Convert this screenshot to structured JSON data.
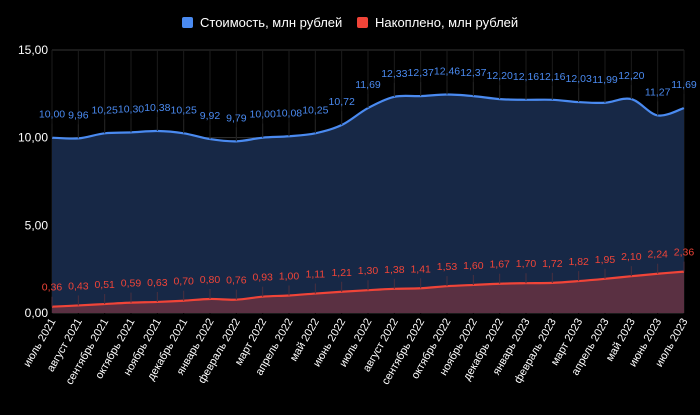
{
  "chart_data": {
    "type": "area",
    "title": "",
    "xlabel": "",
    "ylabel": "",
    "ylim": [
      0,
      15
    ],
    "yticks": [
      "0,00",
      "5,00",
      "10,00",
      "15,00"
    ],
    "ytick_values": [
      0,
      5,
      10,
      15
    ],
    "grid": true,
    "legend_position": "top",
    "categories": [
      "июль 2021",
      "август 2021",
      "сентябрь 2021",
      "октябрь 2021",
      "ноябрь 2021",
      "декабрь 2021",
      "январь 2022",
      "февраль 2022",
      "март 2022",
      "апрель 2022",
      "май 2022",
      "июнь 2022",
      "июль 2022",
      "август 2022",
      "сентябрь 2022",
      "октябрь 2022",
      "ноябрь 2022",
      "декабрь 2022",
      "январь 2023",
      "февраль 2023",
      "март 2023",
      "апрель 2023",
      "май 2023",
      "июнь 2023",
      "июль 2023"
    ],
    "series": [
      {
        "name": "Стоимость, млн рублей",
        "color": "#4a8af0",
        "fill": "#172846",
        "values": [
          10.0,
          9.96,
          10.25,
          10.3,
          10.38,
          10.25,
          9.92,
          9.79,
          10.0,
          10.08,
          10.25,
          10.72,
          11.69,
          12.33,
          12.37,
          12.46,
          12.37,
          12.2,
          12.16,
          12.16,
          12.03,
          11.99,
          12.2,
          11.27,
          11.69
        ]
      },
      {
        "name": "Накоплено, млн рублей",
        "color": "#f04438",
        "fill": "#5a3042",
        "values": [
          0.36,
          0.43,
          0.51,
          0.59,
          0.63,
          0.7,
          0.8,
          0.76,
          0.93,
          1.0,
          1.11,
          1.21,
          1.3,
          1.38,
          1.41,
          1.53,
          1.6,
          1.67,
          1.7,
          1.72,
          1.82,
          1.95,
          2.1,
          2.24,
          2.36
        ]
      }
    ]
  }
}
